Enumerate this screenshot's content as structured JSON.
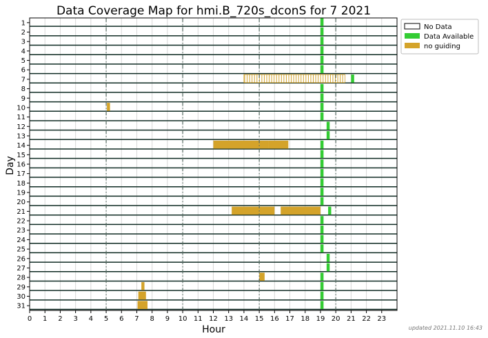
{
  "chart_data": {
    "type": "coverage-map",
    "title": "Data Coverage Map for hmi.B_720s_dconS for 7 2021",
    "xlabel": "Hour",
    "ylabel": "Day",
    "xlim": [
      0,
      24
    ],
    "xticks": [
      "0",
      "1",
      "2",
      "3",
      "4",
      "5",
      "6",
      "7",
      "8",
      "9",
      "10",
      "11",
      "12",
      "13",
      "14",
      "15",
      "16",
      "17",
      "18",
      "19",
      "20",
      "21",
      "22",
      "23"
    ],
    "days": [
      "1",
      "2",
      "3",
      "4",
      "5",
      "6",
      "7",
      "8",
      "9",
      "10",
      "11",
      "12",
      "13",
      "14",
      "15",
      "16",
      "17",
      "18",
      "19",
      "20",
      "21",
      "22",
      "23",
      "24",
      "25",
      "26",
      "27",
      "28",
      "29",
      "30",
      "31"
    ],
    "vlines": [
      5,
      10,
      15,
      20
    ],
    "legend_position": "outside-right-top",
    "legend": [
      {
        "label": "No Data",
        "color": "#ffffff"
      },
      {
        "label": "Data Available",
        "color": "#33cc33"
      },
      {
        "label": "no guiding",
        "color": "#d4a32a"
      }
    ],
    "series": [
      {
        "name": "Data Available",
        "color": "#33cc33",
        "intervals": [
          [
            1,
            19.0,
            19.2
          ],
          [
            2,
            19.0,
            19.2
          ],
          [
            3,
            19.0,
            19.2
          ],
          [
            4,
            19.0,
            19.2
          ],
          [
            5,
            19.0,
            19.2
          ],
          [
            6,
            19.0,
            19.2
          ],
          [
            7,
            19.0,
            19.2
          ],
          [
            7,
            21.0,
            21.2
          ],
          [
            8,
            19.0,
            19.2
          ],
          [
            9,
            19.0,
            19.2
          ],
          [
            10,
            19.0,
            19.2
          ],
          [
            11,
            19.0,
            19.2
          ],
          [
            12,
            19.4,
            19.6
          ],
          [
            13,
            19.4,
            19.6
          ],
          [
            14,
            19.0,
            19.2
          ],
          [
            15,
            19.0,
            19.2
          ],
          [
            16,
            19.0,
            19.2
          ],
          [
            17,
            19.0,
            19.2
          ],
          [
            18,
            19.0,
            19.2
          ],
          [
            19,
            19.0,
            19.2
          ],
          [
            20,
            19.0,
            19.2
          ],
          [
            21,
            19.5,
            19.7
          ],
          [
            22,
            19.0,
            19.2
          ],
          [
            23,
            19.0,
            19.2
          ],
          [
            24,
            19.0,
            19.2
          ],
          [
            25,
            19.0,
            19.2
          ],
          [
            26,
            19.4,
            19.6
          ],
          [
            27,
            19.4,
            19.6
          ],
          [
            28,
            19.0,
            19.2
          ],
          [
            29,
            19.0,
            19.2
          ],
          [
            30,
            19.0,
            19.2
          ],
          [
            31,
            19.0,
            19.2
          ]
        ]
      },
      {
        "name": "no guiding",
        "color": "#d4a32a",
        "intervals": [
          [
            10,
            5.05,
            5.25
          ],
          [
            14,
            12.0,
            15.6
          ],
          [
            14,
            15.6,
            16.9
          ],
          [
            21,
            13.2,
            16.0
          ],
          [
            21,
            16.4,
            19.0
          ],
          [
            28,
            15.0,
            15.35
          ],
          [
            29,
            7.3,
            7.5
          ],
          [
            30,
            7.1,
            7.6
          ],
          [
            31,
            7.05,
            7.7
          ]
        ]
      },
      {
        "name": "no guiding (striped)",
        "color": "#d4a32a",
        "striped": true,
        "intervals": [
          [
            7,
            14.0,
            20.6
          ]
        ]
      }
    ]
  },
  "footer": {
    "updated": "updated 2021.11.10 16:43"
  }
}
